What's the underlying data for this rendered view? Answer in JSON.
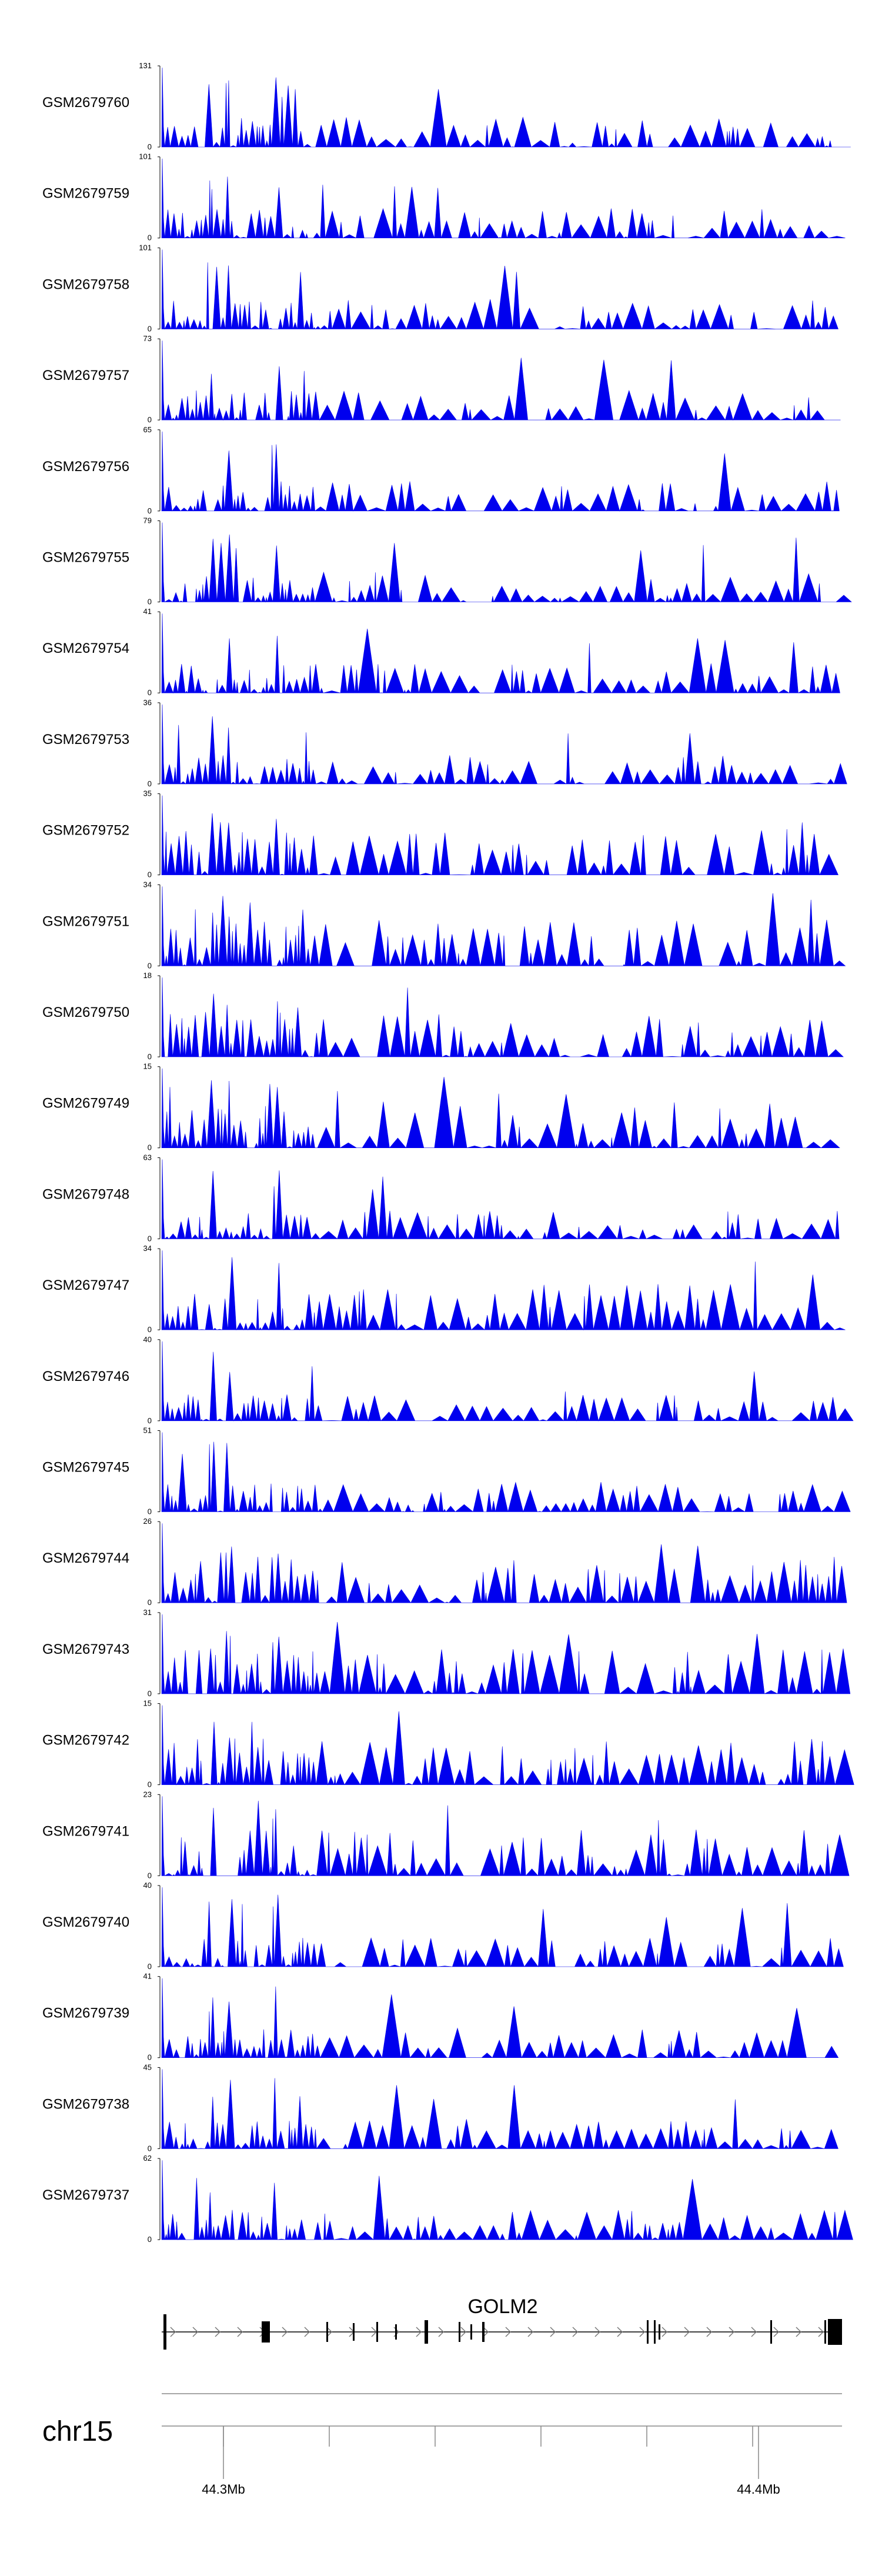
{
  "chart_data": {
    "type": "area",
    "chromosome": "chr15",
    "gene": {
      "name": "GOLM2",
      "strand": "+"
    },
    "x_axis": {
      "unit": "Mb",
      "ticks": [
        {
          "value": 44.3,
          "label": "44.3Mb"
        },
        {
          "value": 44.4,
          "label": "44.4Mb"
        }
      ]
    },
    "series": [
      {
        "name": "GSM2679760",
        "ymax": 131,
        "ymax_label": "131",
        "ymin_label": "0"
      },
      {
        "name": "GSM2679759",
        "ymax": 101,
        "ymax_label": "101",
        "ymin_label": "0"
      },
      {
        "name": "GSM2679758",
        "ymax": 101,
        "ymax_label": "101",
        "ymin_label": "0"
      },
      {
        "name": "GSM2679757",
        "ymax": 73,
        "ymax_label": "73",
        "ymin_label": "0"
      },
      {
        "name": "GSM2679756",
        "ymax": 65,
        "ymax_label": "65",
        "ymin_label": "0"
      },
      {
        "name": "GSM2679755",
        "ymax": 79,
        "ymax_label": "79",
        "ymin_label": "0"
      },
      {
        "name": "GSM2679754",
        "ymax": 41,
        "ymax_label": "41",
        "ymin_label": "0"
      },
      {
        "name": "GSM2679753",
        "ymax": 36,
        "ymax_label": "36",
        "ymin_label": "0"
      },
      {
        "name": "GSM2679752",
        "ymax": 35,
        "ymax_label": "35",
        "ymin_label": "0"
      },
      {
        "name": "GSM2679751",
        "ymax": 34,
        "ymax_label": "34",
        "ymin_label": "0"
      },
      {
        "name": "GSM2679750",
        "ymax": 18,
        "ymax_label": "18",
        "ymin_label": "0"
      },
      {
        "name": "GSM2679749",
        "ymax": 15,
        "ymax_label": "15",
        "ymin_label": "0"
      },
      {
        "name": "GSM2679748",
        "ymax": 63,
        "ymax_label": "63",
        "ymin_label": "0"
      },
      {
        "name": "GSM2679747",
        "ymax": 34,
        "ymax_label": "34",
        "ymin_label": "0"
      },
      {
        "name": "GSM2679746",
        "ymax": 40,
        "ymax_label": "40",
        "ymin_label": "0"
      },
      {
        "name": "GSM2679745",
        "ymax": 51,
        "ymax_label": "51",
        "ymin_label": "0"
      },
      {
        "name": "GSM2679744",
        "ymax": 26,
        "ymax_label": "26",
        "ymin_label": "0"
      },
      {
        "name": "GSM2679743",
        "ymax": 31,
        "ymax_label": "31",
        "ymin_label": "0"
      },
      {
        "name": "GSM2679742",
        "ymax": 15,
        "ymax_label": "15",
        "ymin_label": "0"
      },
      {
        "name": "GSM2679741",
        "ymax": 23,
        "ymax_label": "23",
        "ymin_label": "0"
      },
      {
        "name": "GSM2679740",
        "ymax": 40,
        "ymax_label": "40",
        "ymin_label": "0"
      },
      {
        "name": "GSM2679739",
        "ymax": 41,
        "ymax_label": "41",
        "ymin_label": "0"
      },
      {
        "name": "GSM2679738",
        "ymax": 45,
        "ymax_label": "45",
        "ymin_label": "0"
      },
      {
        "name": "GSM2679737",
        "ymax": 62,
        "ymax_label": "62",
        "ymin_label": "0"
      }
    ],
    "colors": {
      "signal": "#0000ee",
      "axis": "#000000",
      "gene_model": "#000000",
      "guide_lines": "#888888"
    },
    "grid": false,
    "legend": "none"
  }
}
